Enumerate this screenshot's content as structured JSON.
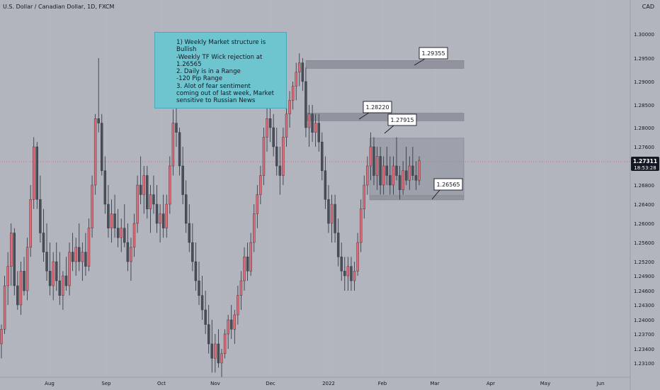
{
  "header": {
    "symbol_title": "U.S. Dollar / Canadian Dollar, 1D, FXCM",
    "currency": "CAD"
  },
  "annotation_note": "1) Weekly Market structure is\nBullish\n-Weekly TF Wick rejection at 1.26565\n2. Daily is in a Range\n-120 Pip Range\n3. Alot of fear sentiment\ncoming out of last week, Market\nsensitive to Russian News",
  "price_tag": {
    "price": "1.27311",
    "countdown": "18:53:28"
  },
  "colors": {
    "up": "#e36873",
    "down": "#4a4e58",
    "zone": "#8d909a",
    "zone_edge": "#80838c",
    "note_bg": "#6ec5d0",
    "price_tag_bg": "#131722",
    "background": "#b2b5be"
  },
  "chart_data": {
    "type": "candlestick",
    "title": "U.S. Dollar / Canadian Dollar, 1D, FXCM",
    "y_axis": {
      "ticks": [
        "1.30000",
        "1.29500",
        "1.29000",
        "1.28500",
        "1.28000",
        "1.27600",
        "1.27200",
        "1.26800",
        "1.26400",
        "1.26000",
        "1.25600",
        "1.25200",
        "1.24900",
        "1.24600",
        "1.24300",
        "1.24000",
        "1.23700",
        "1.23400",
        "1.23100"
      ],
      "range": [
        1.228,
        1.304
      ]
    },
    "x_axis": {
      "ticks": [
        "Aug",
        "Sep",
        "Oct",
        "Nov",
        "Dec",
        "2022",
        "Feb",
        "Mar",
        "Apr",
        "May",
        "Jun"
      ]
    },
    "zones": [
      {
        "label": "1.29355",
        "low": 1.2928,
        "high": 1.2945
      },
      {
        "label": "1.28220",
        "low": 1.2815,
        "high": 1.2832
      },
      {
        "label": "1.27915",
        "low": 1.2658,
        "high": 1.2778
      },
      {
        "label": "1.26565",
        "low": 1.2649,
        "high": 1.2658
      }
    ],
    "current_price": 1.27311,
    "candles": [
      {
        "o": 1.235,
        "h": 1.239,
        "l": 1.232,
        "c": 1.238
      },
      {
        "o": 1.238,
        "h": 1.249,
        "l": 1.237,
        "c": 1.247
      },
      {
        "o": 1.247,
        "h": 1.254,
        "l": 1.243,
        "c": 1.251
      },
      {
        "o": 1.251,
        "h": 1.26,
        "l": 1.247,
        "c": 1.258
      },
      {
        "o": 1.258,
        "h": 1.259,
        "l": 1.245,
        "c": 1.247
      },
      {
        "o": 1.247,
        "h": 1.25,
        "l": 1.242,
        "c": 1.243
      },
      {
        "o": 1.243,
        "h": 1.252,
        "l": 1.241,
        "c": 1.25
      },
      {
        "o": 1.25,
        "h": 1.253,
        "l": 1.245,
        "c": 1.246
      },
      {
        "o": 1.246,
        "h": 1.257,
        "l": 1.244,
        "c": 1.255
      },
      {
        "o": 1.255,
        "h": 1.268,
        "l": 1.253,
        "c": 1.265
      },
      {
        "o": 1.265,
        "h": 1.278,
        "l": 1.263,
        "c": 1.276
      },
      {
        "o": 1.276,
        "h": 1.277,
        "l": 1.263,
        "c": 1.265
      },
      {
        "o": 1.265,
        "h": 1.27,
        "l": 1.256,
        "c": 1.258
      },
      {
        "o": 1.258,
        "h": 1.263,
        "l": 1.252,
        "c": 1.254
      },
      {
        "o": 1.254,
        "h": 1.26,
        "l": 1.248,
        "c": 1.25
      },
      {
        "o": 1.25,
        "h": 1.256,
        "l": 1.245,
        "c": 1.247
      },
      {
        "o": 1.247,
        "h": 1.254,
        "l": 1.244,
        "c": 1.252
      },
      {
        "o": 1.252,
        "h": 1.256,
        "l": 1.246,
        "c": 1.248
      },
      {
        "o": 1.248,
        "h": 1.254,
        "l": 1.243,
        "c": 1.245
      },
      {
        "o": 1.245,
        "h": 1.25,
        "l": 1.242,
        "c": 1.249
      },
      {
        "o": 1.249,
        "h": 1.253,
        "l": 1.246,
        "c": 1.247
      },
      {
        "o": 1.247,
        "h": 1.256,
        "l": 1.245,
        "c": 1.254
      },
      {
        "o": 1.254,
        "h": 1.258,
        "l": 1.25,
        "c": 1.252
      },
      {
        "o": 1.252,
        "h": 1.257,
        "l": 1.249,
        "c": 1.255
      },
      {
        "o": 1.255,
        "h": 1.26,
        "l": 1.25,
        "c": 1.252
      },
      {
        "o": 1.252,
        "h": 1.256,
        "l": 1.248,
        "c": 1.254
      },
      {
        "o": 1.254,
        "h": 1.258,
        "l": 1.249,
        "c": 1.251
      },
      {
        "o": 1.251,
        "h": 1.261,
        "l": 1.25,
        "c": 1.259
      },
      {
        "o": 1.259,
        "h": 1.27,
        "l": 1.257,
        "c": 1.268
      },
      {
        "o": 1.268,
        "h": 1.283,
        "l": 1.266,
        "c": 1.282
      },
      {
        "o": 1.282,
        "h": 1.295,
        "l": 1.279,
        "c": 1.281
      },
      {
        "o": 1.281,
        "h": 1.283,
        "l": 1.27,
        "c": 1.271
      },
      {
        "o": 1.271,
        "h": 1.274,
        "l": 1.262,
        "c": 1.264
      },
      {
        "o": 1.264,
        "h": 1.268,
        "l": 1.257,
        "c": 1.259
      },
      {
        "o": 1.259,
        "h": 1.265,
        "l": 1.256,
        "c": 1.262
      },
      {
        "o": 1.262,
        "h": 1.266,
        "l": 1.257,
        "c": 1.259
      },
      {
        "o": 1.259,
        "h": 1.263,
        "l": 1.255,
        "c": 1.257
      },
      {
        "o": 1.257,
        "h": 1.261,
        "l": 1.254,
        "c": 1.259
      },
      {
        "o": 1.259,
        "h": 1.264,
        "l": 1.255,
        "c": 1.256
      },
      {
        "o": 1.256,
        "h": 1.26,
        "l": 1.25,
        "c": 1.252
      },
      {
        "o": 1.252,
        "h": 1.257,
        "l": 1.248,
        "c": 1.255
      },
      {
        "o": 1.255,
        "h": 1.262,
        "l": 1.253,
        "c": 1.26
      },
      {
        "o": 1.26,
        "h": 1.27,
        "l": 1.258,
        "c": 1.268
      },
      {
        "o": 1.268,
        "h": 1.274,
        "l": 1.264,
        "c": 1.266
      },
      {
        "o": 1.266,
        "h": 1.272,
        "l": 1.262,
        "c": 1.27
      },
      {
        "o": 1.27,
        "h": 1.272,
        "l": 1.261,
        "c": 1.263
      },
      {
        "o": 1.263,
        "h": 1.268,
        "l": 1.258,
        "c": 1.266
      },
      {
        "o": 1.266,
        "h": 1.27,
        "l": 1.262,
        "c": 1.264
      },
      {
        "o": 1.264,
        "h": 1.268,
        "l": 1.258,
        "c": 1.26
      },
      {
        "o": 1.26,
        "h": 1.264,
        "l": 1.256,
        "c": 1.262
      },
      {
        "o": 1.262,
        "h": 1.266,
        "l": 1.257,
        "c": 1.259
      },
      {
        "o": 1.259,
        "h": 1.266,
        "l": 1.257,
        "c": 1.264
      },
      {
        "o": 1.264,
        "h": 1.274,
        "l": 1.262,
        "c": 1.272
      },
      {
        "o": 1.272,
        "h": 1.284,
        "l": 1.27,
        "c": 1.281
      },
      {
        "o": 1.281,
        "h": 1.288,
        "l": 1.276,
        "c": 1.279
      },
      {
        "o": 1.279,
        "h": 1.28,
        "l": 1.27,
        "c": 1.272
      },
      {
        "o": 1.272,
        "h": 1.276,
        "l": 1.264,
        "c": 1.266
      },
      {
        "o": 1.266,
        "h": 1.269,
        "l": 1.258,
        "c": 1.26
      },
      {
        "o": 1.26,
        "h": 1.264,
        "l": 1.254,
        "c": 1.256
      },
      {
        "o": 1.256,
        "h": 1.26,
        "l": 1.25,
        "c": 1.252
      },
      {
        "o": 1.252,
        "h": 1.256,
        "l": 1.246,
        "c": 1.248
      },
      {
        "o": 1.248,
        "h": 1.252,
        "l": 1.243,
        "c": 1.245
      },
      {
        "o": 1.245,
        "h": 1.249,
        "l": 1.24,
        "c": 1.242
      },
      {
        "o": 1.242,
        "h": 1.246,
        "l": 1.237,
        "c": 1.239
      },
      {
        "o": 1.239,
        "h": 1.243,
        "l": 1.233,
        "c": 1.235
      },
      {
        "o": 1.235,
        "h": 1.24,
        "l": 1.229,
        "c": 1.232
      },
      {
        "o": 1.232,
        "h": 1.237,
        "l": 1.229,
        "c": 1.235
      },
      {
        "o": 1.235,
        "h": 1.238,
        "l": 1.23,
        "c": 1.231
      },
      {
        "o": 1.231,
        "h": 1.234,
        "l": 1.228,
        "c": 1.233
      },
      {
        "o": 1.233,
        "h": 1.238,
        "l": 1.232,
        "c": 1.237
      },
      {
        "o": 1.237,
        "h": 1.241,
        "l": 1.234,
        "c": 1.24
      },
      {
        "o": 1.24,
        "h": 1.243,
        "l": 1.236,
        "c": 1.238
      },
      {
        "o": 1.238,
        "h": 1.242,
        "l": 1.235,
        "c": 1.241
      },
      {
        "o": 1.241,
        "h": 1.247,
        "l": 1.239,
        "c": 1.245
      },
      {
        "o": 1.245,
        "h": 1.25,
        "l": 1.242,
        "c": 1.248
      },
      {
        "o": 1.248,
        "h": 1.255,
        "l": 1.246,
        "c": 1.253
      },
      {
        "o": 1.253,
        "h": 1.256,
        "l": 1.248,
        "c": 1.25
      },
      {
        "o": 1.25,
        "h": 1.258,
        "l": 1.249,
        "c": 1.256
      },
      {
        "o": 1.256,
        "h": 1.264,
        "l": 1.254,
        "c": 1.262
      },
      {
        "o": 1.262,
        "h": 1.268,
        "l": 1.259,
        "c": 1.266
      },
      {
        "o": 1.266,
        "h": 1.272,
        "l": 1.264,
        "c": 1.27
      },
      {
        "o": 1.27,
        "h": 1.28,
        "l": 1.268,
        "c": 1.278
      },
      {
        "o": 1.278,
        "h": 1.285,
        "l": 1.275,
        "c": 1.282
      },
      {
        "o": 1.282,
        "h": 1.286,
        "l": 1.277,
        "c": 1.28
      },
      {
        "o": 1.28,
        "h": 1.283,
        "l": 1.274,
        "c": 1.276
      },
      {
        "o": 1.276,
        "h": 1.28,
        "l": 1.27,
        "c": 1.272
      },
      {
        "o": 1.272,
        "h": 1.276,
        "l": 1.266,
        "c": 1.27
      },
      {
        "o": 1.27,
        "h": 1.28,
        "l": 1.268,
        "c": 1.278
      },
      {
        "o": 1.278,
        "h": 1.285,
        "l": 1.276,
        "c": 1.283
      },
      {
        "o": 1.283,
        "h": 1.288,
        "l": 1.28,
        "c": 1.286
      },
      {
        "o": 1.286,
        "h": 1.29,
        "l": 1.284,
        "c": 1.289
      },
      {
        "o": 1.289,
        "h": 1.294,
        "l": 1.286,
        "c": 1.292
      },
      {
        "o": 1.292,
        "h": 1.296,
        "l": 1.289,
        "c": 1.294
      },
      {
        "o": 1.294,
        "h": 1.295,
        "l": 1.288,
        "c": 1.29
      },
      {
        "o": 1.29,
        "h": 1.293,
        "l": 1.278,
        "c": 1.28
      },
      {
        "o": 1.28,
        "h": 1.285,
        "l": 1.276,
        "c": 1.283
      },
      {
        "o": 1.283,
        "h": 1.285,
        "l": 1.277,
        "c": 1.279
      },
      {
        "o": 1.279,
        "h": 1.283,
        "l": 1.276,
        "c": 1.281
      },
      {
        "o": 1.281,
        "h": 1.283,
        "l": 1.275,
        "c": 1.277
      },
      {
        "o": 1.277,
        "h": 1.279,
        "l": 1.269,
        "c": 1.271
      },
      {
        "o": 1.271,
        "h": 1.274,
        "l": 1.263,
        "c": 1.265
      },
      {
        "o": 1.265,
        "h": 1.268,
        "l": 1.258,
        "c": 1.26
      },
      {
        "o": 1.26,
        "h": 1.266,
        "l": 1.256,
        "c": 1.264
      },
      {
        "o": 1.264,
        "h": 1.266,
        "l": 1.256,
        "c": 1.258
      },
      {
        "o": 1.258,
        "h": 1.261,
        "l": 1.251,
        "c": 1.253
      },
      {
        "o": 1.253,
        "h": 1.256,
        "l": 1.248,
        "c": 1.25
      },
      {
        "o": 1.25,
        "h": 1.253,
        "l": 1.246,
        "c": 1.249
      },
      {
        "o": 1.249,
        "h": 1.253,
        "l": 1.246,
        "c": 1.251
      },
      {
        "o": 1.251,
        "h": 1.253,
        "l": 1.246,
        "c": 1.248
      },
      {
        "o": 1.248,
        "h": 1.252,
        "l": 1.246,
        "c": 1.25
      },
      {
        "o": 1.25,
        "h": 1.258,
        "l": 1.249,
        "c": 1.256
      },
      {
        "o": 1.256,
        "h": 1.265,
        "l": 1.254,
        "c": 1.263
      },
      {
        "o": 1.263,
        "h": 1.27,
        "l": 1.261,
        "c": 1.268
      },
      {
        "o": 1.268,
        "h": 1.274,
        "l": 1.266,
        "c": 1.272
      },
      {
        "o": 1.272,
        "h": 1.279,
        "l": 1.269,
        "c": 1.276
      },
      {
        "o": 1.276,
        "h": 1.278,
        "l": 1.268,
        "c": 1.27
      },
      {
        "o": 1.27,
        "h": 1.276,
        "l": 1.267,
        "c": 1.274
      },
      {
        "o": 1.274,
        "h": 1.276,
        "l": 1.266,
        "c": 1.268
      },
      {
        "o": 1.268,
        "h": 1.274,
        "l": 1.266,
        "c": 1.272
      },
      {
        "o": 1.272,
        "h": 1.276,
        "l": 1.268,
        "c": 1.27
      },
      {
        "o": 1.27,
        "h": 1.274,
        "l": 1.266,
        "c": 1.268
      },
      {
        "o": 1.268,
        "h": 1.274,
        "l": 1.266,
        "c": 1.272
      },
      {
        "o": 1.272,
        "h": 1.278,
        "l": 1.269,
        "c": 1.27
      },
      {
        "o": 1.27,
        "h": 1.272,
        "l": 1.265,
        "c": 1.267
      },
      {
        "o": 1.267,
        "h": 1.273,
        "l": 1.266,
        "c": 1.271
      },
      {
        "o": 1.271,
        "h": 1.276,
        "l": 1.268,
        "c": 1.269
      },
      {
        "o": 1.269,
        "h": 1.274,
        "l": 1.267,
        "c": 1.272
      },
      {
        "o": 1.272,
        "h": 1.276,
        "l": 1.269,
        "c": 1.27
      },
      {
        "o": 1.27,
        "h": 1.273,
        "l": 1.267,
        "c": 1.269
      },
      {
        "o": 1.269,
        "h": 1.274,
        "l": 1.268,
        "c": 1.2731
      }
    ]
  }
}
